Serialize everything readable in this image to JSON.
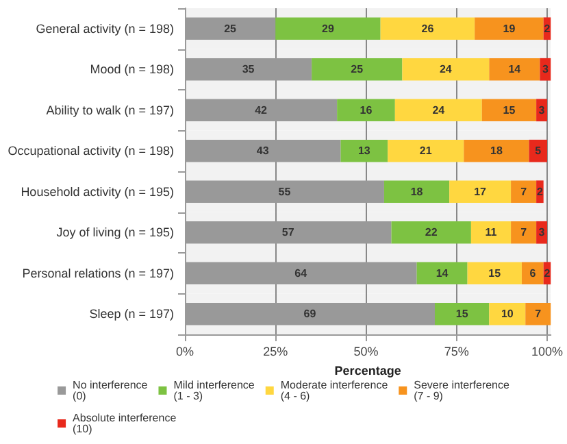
{
  "chart_data": {
    "type": "bar",
    "orientation": "horizontal",
    "stacked": true,
    "xlabel": "Percentage",
    "categories": [
      "General activity (n = 198)",
      "Mood (n = 198)",
      "Ability to walk (n = 197)",
      "Occupational activity (n = 198)",
      "Household activity (n = 195)",
      "Joy of living (n = 195)",
      "Personal relations (n = 197)",
      "Sleep (n = 197)"
    ],
    "series": [
      {
        "name": "No interference (0)",
        "color": "#999999",
        "values": [
          25,
          35,
          42,
          43,
          55,
          57,
          64,
          69
        ]
      },
      {
        "name": "Mild interference (1 - 3)",
        "color": "#7dc242",
        "values": [
          29,
          25,
          16,
          13,
          18,
          22,
          14,
          15
        ]
      },
      {
        "name": "Moderate interference (4 - 6)",
        "color": "#ffd740",
        "values": [
          26,
          24,
          24,
          21,
          17,
          11,
          15,
          10
        ]
      },
      {
        "name": "Severe interference (7 - 9)",
        "color": "#f7931e",
        "values": [
          19,
          14,
          15,
          18,
          7,
          7,
          6,
          7
        ]
      },
      {
        "name": "Absolute interference (10)",
        "color": "#e8291c",
        "values": [
          2,
          3,
          3,
          5,
          2,
          3,
          2,
          null
        ]
      }
    ],
    "xlim": [
      0,
      101
    ],
    "xticks": [
      {
        "value": 0,
        "label": "0%"
      },
      {
        "value": 25,
        "label": "25%"
      },
      {
        "value": 50,
        "label": "50%"
      },
      {
        "value": 75,
        "label": "75%"
      },
      {
        "value": 100,
        "label": "100%"
      }
    ],
    "data_labels": true,
    "grid": "x",
    "legend": "bottom"
  }
}
